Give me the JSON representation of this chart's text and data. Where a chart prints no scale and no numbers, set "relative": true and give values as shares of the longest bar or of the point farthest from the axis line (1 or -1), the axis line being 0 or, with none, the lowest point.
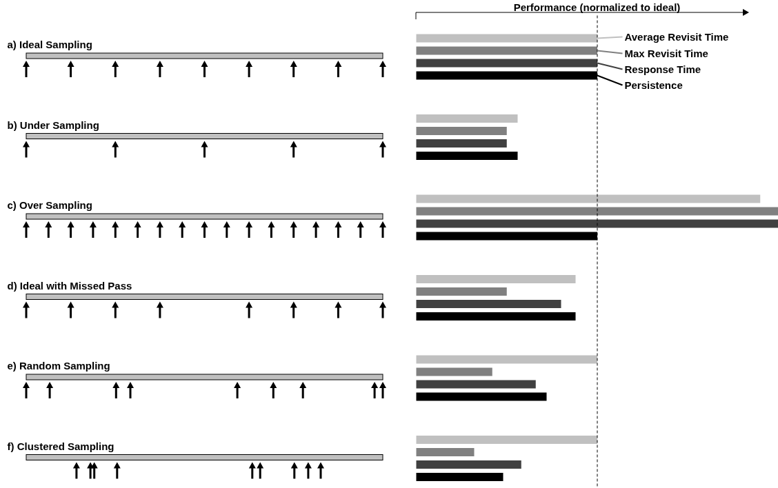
{
  "chart_data": {
    "type": "bar",
    "orientation": "horizontal",
    "relative": true,
    "xlabel": "Performance (normalized to ideal)",
    "categories": [
      "a) Ideal Sampling",
      "b) Under Sampling",
      "c) Over Sampling",
      "d) Ideal with Missed Pass",
      "e) Random Sampling",
      "f) Clustered Sampling"
    ],
    "series": [
      {
        "name": "Average Revisit Time",
        "color": "#c0c0c0",
        "values": [
          0.5,
          0.28,
          0.95,
          0.44,
          0.5,
          0.5
        ]
      },
      {
        "name": "Max Revisit Time",
        "color": "#808080",
        "values": [
          0.5,
          0.25,
          1,
          0.25,
          0.21,
          0.16
        ]
      },
      {
        "name": "Response Time",
        "color": "#404040",
        "values": [
          0.5,
          0.25,
          1,
          0.4,
          0.33,
          0.29
        ]
      },
      {
        "name": "Persistence",
        "color": "#000000",
        "values": [
          0.5,
          0.28,
          0.5,
          0.44,
          0.36,
          0.24
        ]
      }
    ],
    "legend": "top right",
    "ref_lines": [
      {
        "axis": "x",
        "value": 0.5,
        "line_style": "dashed",
        "color": "#000000"
      }
    ]
  }
}
